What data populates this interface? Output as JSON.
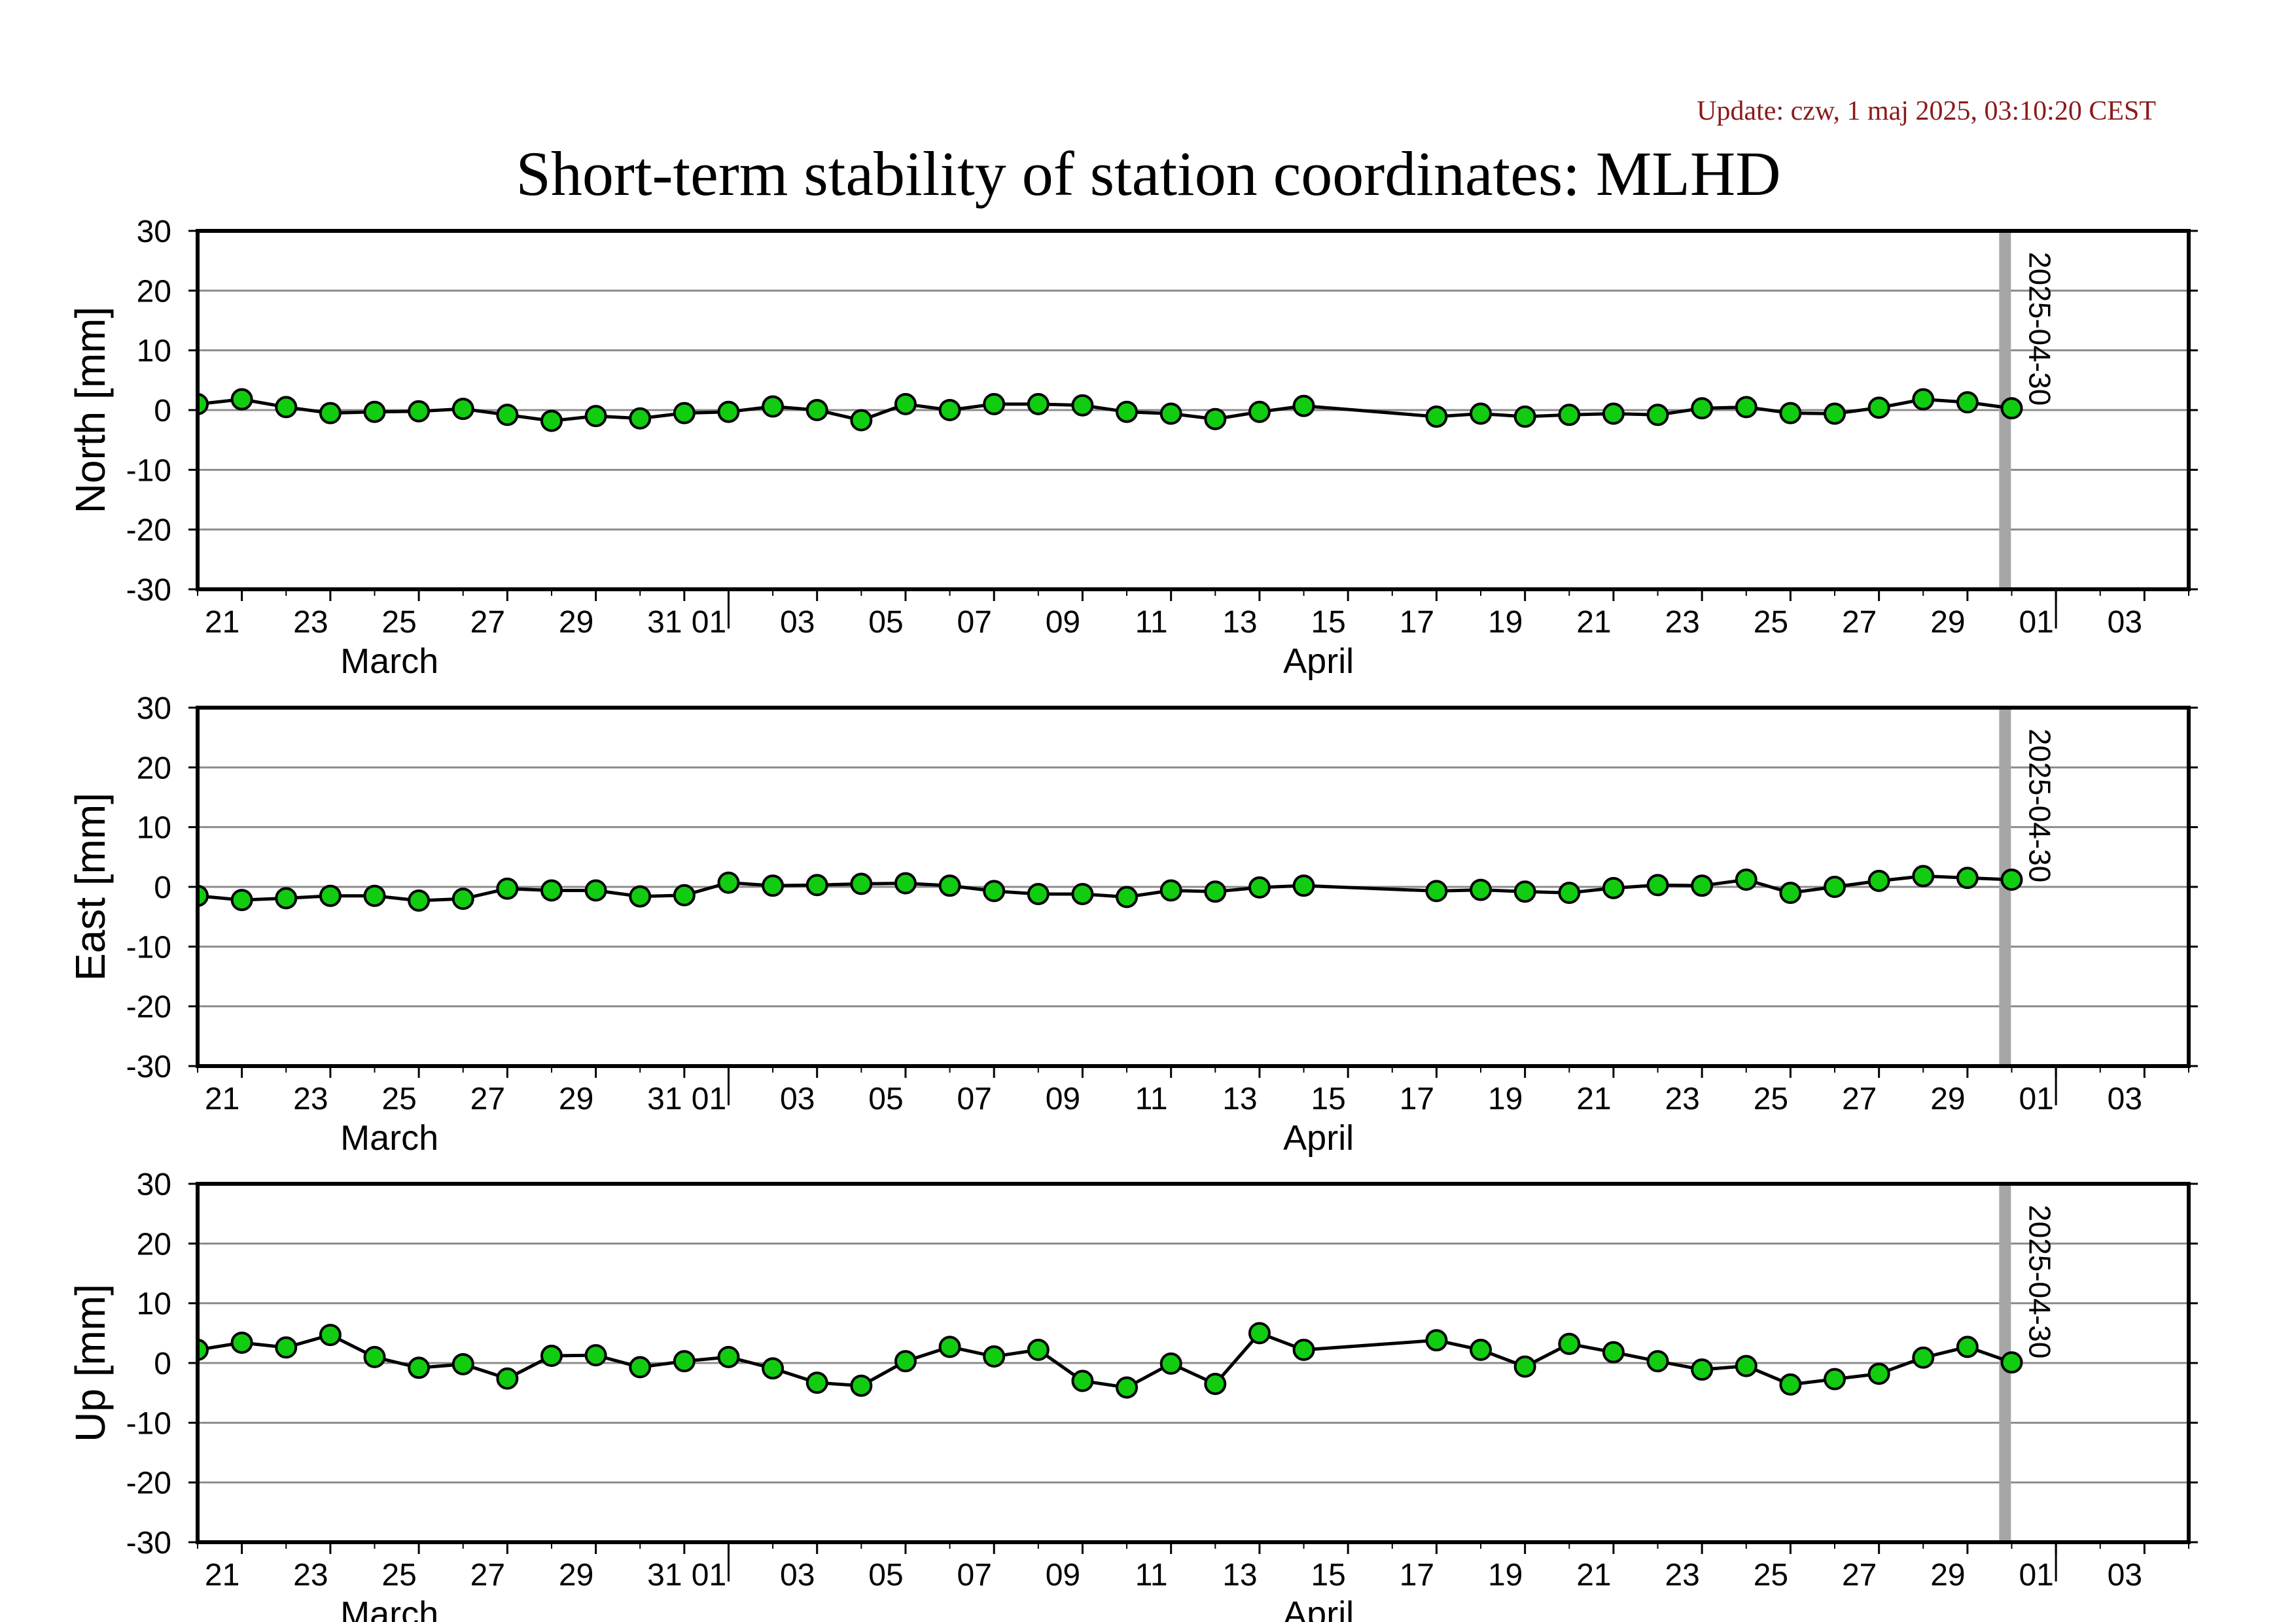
{
  "header": {
    "update": "Update: czw, 1 maj 2025, 03:10:20 CEST",
    "title": "Short-term stability of station coordinates: MLHD"
  },
  "colors": {
    "marker_fill": "#11cc11",
    "marker_stroke": "#000000",
    "line": "#000000",
    "grid": "#8c8c8c",
    "epoch_line": "#a6a6a6"
  },
  "x_axis": {
    "start": "2025-03-20",
    "end": "2025-05-04",
    "tick_labels": [
      "21",
      "23",
      "25",
      "27",
      "29",
      "31",
      "01",
      "03",
      "05",
      "07",
      "09",
      "11",
      "13",
      "15",
      "17",
      "19",
      "21",
      "23",
      "25",
      "27",
      "29",
      "01",
      "03"
    ],
    "tick_dates": [
      "2025-03-21",
      "2025-03-23",
      "2025-03-25",
      "2025-03-27",
      "2025-03-29",
      "2025-03-31",
      "2025-04-01",
      "2025-04-03",
      "2025-04-05",
      "2025-04-07",
      "2025-04-09",
      "2025-04-11",
      "2025-04-13",
      "2025-04-15",
      "2025-04-17",
      "2025-04-19",
      "2025-04-21",
      "2025-04-23",
      "2025-04-25",
      "2025-04-27",
      "2025-04-29",
      "2025-05-01",
      "2025-05-03"
    ],
    "months": [
      {
        "label": "March",
        "date": "2025-03-25"
      },
      {
        "label": "April",
        "date": "2025-04-15"
      }
    ],
    "month_boundaries": [
      "2025-04-01",
      "2025-05-01"
    ]
  },
  "chart_data": [
    {
      "type": "line",
      "ylabel": "North [mm]",
      "ylim": [
        -30,
        30
      ],
      "yticks": [
        30,
        20,
        10,
        0,
        -10,
        -20,
        -30
      ],
      "grid": true,
      "epoch_marker": {
        "date": "2025-04-30",
        "label": "2025-04-30"
      },
      "series": [
        {
          "x": [
            "2025-03-20",
            "2025-03-21",
            "2025-03-22",
            "2025-03-23",
            "2025-03-24",
            "2025-03-25",
            "2025-03-26",
            "2025-03-27",
            "2025-03-28",
            "2025-03-29",
            "2025-03-30",
            "2025-03-31",
            "2025-04-01",
            "2025-04-02",
            "2025-04-03",
            "2025-04-04",
            "2025-04-05",
            "2025-04-06",
            "2025-04-07",
            "2025-04-08",
            "2025-04-09",
            "2025-04-10",
            "2025-04-11",
            "2025-04-12",
            "2025-04-13",
            "2025-04-14",
            "2025-04-17",
            "2025-04-18",
            "2025-04-19",
            "2025-04-20",
            "2025-04-21",
            "2025-04-22",
            "2025-04-23",
            "2025-04-24",
            "2025-04-25",
            "2025-04-26",
            "2025-04-27",
            "2025-04-28",
            "2025-04-29",
            "2025-04-30"
          ],
          "y": [
            1,
            1.8,
            0.5,
            -0.5,
            -0.3,
            -0.2,
            0.2,
            -0.8,
            -1.8,
            -1,
            -1.4,
            -0.5,
            -0.3,
            0.6,
            0,
            -1.7,
            1,
            0,
            1,
            1,
            0.8,
            -0.3,
            -0.6,
            -1.5,
            -0.3,
            0.7,
            -1.1,
            -0.6,
            -1.1,
            -0.8,
            -0.6,
            -0.8,
            0.3,
            0.5,
            -0.5,
            -0.6,
            0.4,
            1.8,
            1.3,
            0.3
          ]
        }
      ]
    },
    {
      "type": "line",
      "ylabel": "East [mm]",
      "ylim": [
        -30,
        30
      ],
      "yticks": [
        30,
        20,
        10,
        0,
        -10,
        -20,
        -30
      ],
      "grid": true,
      "epoch_marker": {
        "date": "2025-04-30",
        "label": "2025-04-30"
      },
      "series": [
        {
          "x": [
            "2025-03-20",
            "2025-03-21",
            "2025-03-22",
            "2025-03-23",
            "2025-03-24",
            "2025-03-25",
            "2025-03-26",
            "2025-03-27",
            "2025-03-28",
            "2025-03-29",
            "2025-03-30",
            "2025-03-31",
            "2025-04-01",
            "2025-04-02",
            "2025-04-03",
            "2025-04-04",
            "2025-04-05",
            "2025-04-06",
            "2025-04-07",
            "2025-04-08",
            "2025-04-09",
            "2025-04-10",
            "2025-04-11",
            "2025-04-12",
            "2025-04-13",
            "2025-04-14",
            "2025-04-17",
            "2025-04-18",
            "2025-04-19",
            "2025-04-20",
            "2025-04-21",
            "2025-04-22",
            "2025-04-23",
            "2025-04-24",
            "2025-04-25",
            "2025-04-26",
            "2025-04-27",
            "2025-04-28",
            "2025-04-29",
            "2025-04-30"
          ],
          "y": [
            -1.5,
            -2.2,
            -1.9,
            -1.5,
            -1.5,
            -2.3,
            -2,
            -0.3,
            -0.6,
            -0.6,
            -1.6,
            -1.4,
            0.7,
            0.2,
            0.3,
            0.5,
            0.6,
            0.2,
            -0.7,
            -1.2,
            -1.2,
            -1.7,
            -0.6,
            -0.8,
            -0.1,
            0.2,
            -0.7,
            -0.5,
            -0.8,
            -1,
            -0.2,
            0.3,
            0.2,
            1.2,
            -1,
            0,
            1,
            1.8,
            1.5,
            1.2
          ]
        }
      ]
    },
    {
      "type": "line",
      "ylabel": "Up [mm]",
      "ylim": [
        -30,
        30
      ],
      "yticks": [
        30,
        20,
        10,
        0,
        -10,
        -20,
        -30
      ],
      "grid": true,
      "epoch_marker": {
        "date": "2025-04-30",
        "label": "2025-04-30"
      },
      "series": [
        {
          "x": [
            "2025-03-20",
            "2025-03-21",
            "2025-03-22",
            "2025-03-23",
            "2025-03-24",
            "2025-03-25",
            "2025-03-26",
            "2025-03-27",
            "2025-03-28",
            "2025-03-29",
            "2025-03-30",
            "2025-03-31",
            "2025-04-01",
            "2025-04-02",
            "2025-04-03",
            "2025-04-04",
            "2025-04-05",
            "2025-04-06",
            "2025-04-07",
            "2025-04-08",
            "2025-04-09",
            "2025-04-10",
            "2025-04-11",
            "2025-04-12",
            "2025-04-13",
            "2025-04-14",
            "2025-04-17",
            "2025-04-18",
            "2025-04-19",
            "2025-04-20",
            "2025-04-21",
            "2025-04-22",
            "2025-04-23",
            "2025-04-24",
            "2025-04-25",
            "2025-04-26",
            "2025-04-27",
            "2025-04-28",
            "2025-04-29",
            "2025-04-30"
          ],
          "y": [
            2.2,
            3.4,
            2.6,
            4.7,
            1,
            -0.8,
            -0.2,
            -2.6,
            1.2,
            1.3,
            -0.7,
            0.3,
            1,
            -0.9,
            -3.3,
            -3.8,
            0.3,
            2.7,
            1.1,
            2.2,
            -3,
            -4.1,
            -0.1,
            -3.5,
            5,
            2.2,
            3.8,
            2.2,
            -0.6,
            3.2,
            1.8,
            0.3,
            -1.1,
            -0.5,
            -3.6,
            -2.7,
            -1.8,
            0.9,
            2.7,
            0.1
          ]
        }
      ]
    }
  ]
}
